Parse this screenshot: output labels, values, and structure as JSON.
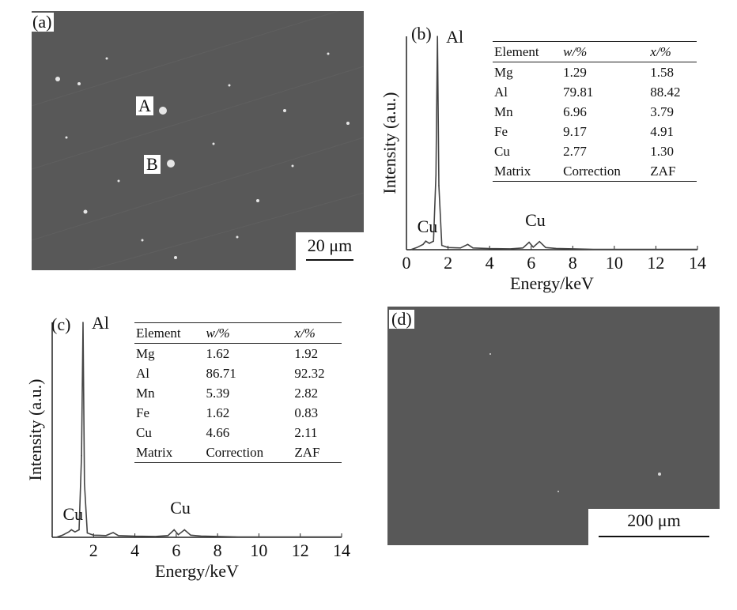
{
  "panels": {
    "a": {
      "label": "(a)",
      "point_a": "A",
      "point_b": "B",
      "scale_bar": "20 μm"
    },
    "d": {
      "label": "(d)",
      "scale_bar": "200 μm"
    }
  },
  "chart_data": [
    {
      "panel": "(b)",
      "type": "line",
      "xlabel": "Energy/keV",
      "ylabel": "Intensity (a.u.)",
      "xlim": [
        0,
        14
      ],
      "x_ticks": [
        "0",
        "2",
        "4",
        "6",
        "8",
        "10",
        "12",
        "14"
      ],
      "peak_labels": [
        {
          "text": "Al",
          "x": 1.49
        },
        {
          "text": "Cu",
          "x": 0.93
        },
        {
          "text": "Cu",
          "x": 6.2
        }
      ],
      "series": [
        {
          "x": [
            0.2,
            0.5,
            0.8,
            0.93,
            1.1,
            1.3,
            1.42,
            1.49,
            1.56,
            1.7,
            2.0,
            2.6,
            2.95,
            3.2,
            4.0,
            5.0,
            5.6,
            5.9,
            6.1,
            6.4,
            6.7,
            7.2,
            8.0,
            9.0,
            10.0,
            11.0,
            12.0,
            13.0,
            14.0
          ],
          "y": [
            0,
            1,
            2.5,
            4,
            3,
            4,
            35,
            100,
            30,
            2,
            1,
            0.8,
            2.5,
            0.8,
            0.5,
            0.4,
            0.8,
            3.5,
            1.2,
            3.8,
            1,
            0.6,
            0.4,
            0.2,
            0.2,
            0.2,
            0.2,
            0.2,
            0.2
          ]
        }
      ],
      "table": {
        "headers": [
          "Element",
          "w/%",
          "x/%"
        ],
        "rows": [
          [
            "Mg",
            "1.29",
            "1.58"
          ],
          [
            "Al",
            "79.81",
            "88.42"
          ],
          [
            "Mn",
            "6.96",
            "3.79"
          ],
          [
            "Fe",
            "9.17",
            "4.91"
          ],
          [
            "Cu",
            "2.77",
            "1.30"
          ],
          [
            "Matrix",
            "Correction",
            "ZAF"
          ]
        ]
      }
    },
    {
      "panel": "(c)",
      "type": "line",
      "xlabel": "Energy/keV",
      "ylabel": "Intensity (a.u.)",
      "xlim": [
        0,
        14
      ],
      "x_ticks": [
        "2",
        "4",
        "6",
        "8",
        "10",
        "12",
        "14"
      ],
      "peak_labels": [
        {
          "text": "Al",
          "x": 1.49
        },
        {
          "text": "Cu",
          "x": 0.93
        },
        {
          "text": "Cu",
          "x": 6.2
        }
      ],
      "series": [
        {
          "x": [
            0.2,
            0.5,
            0.8,
            0.93,
            1.1,
            1.3,
            1.42,
            1.49,
            1.56,
            1.7,
            2.0,
            2.6,
            2.95,
            3.2,
            4.0,
            5.0,
            5.6,
            5.9,
            6.1,
            6.4,
            6.7,
            7.2,
            8.0,
            9.0,
            10.0,
            11.0,
            12.0,
            13.0,
            14.0
          ],
          "y": [
            0,
            1,
            2.5,
            3.5,
            2.5,
            3.5,
            38,
            100,
            25,
            2,
            1,
            0.8,
            2.2,
            0.8,
            0.5,
            0.4,
            0.8,
            3.5,
            1.2,
            3.5,
            1,
            0.6,
            0.4,
            0.2,
            0.2,
            0.2,
            0.2,
            0.2,
            0.2
          ]
        }
      ],
      "table": {
        "headers": [
          "Element",
          "w/%",
          "x/%"
        ],
        "rows": [
          [
            "Mg",
            "1.62",
            "1.92"
          ],
          [
            "Al",
            "86.71",
            "92.32"
          ],
          [
            "Mn",
            "5.39",
            "2.82"
          ],
          [
            "Fe",
            "1.62",
            "0.83"
          ],
          [
            "Cu",
            "4.66",
            "2.11"
          ],
          [
            "Matrix",
            "Correction",
            "ZAF"
          ]
        ]
      }
    }
  ],
  "colors": {
    "sem_background": "#585858",
    "spectrum_line": "#444444",
    "particle": "#e8e8e8"
  }
}
